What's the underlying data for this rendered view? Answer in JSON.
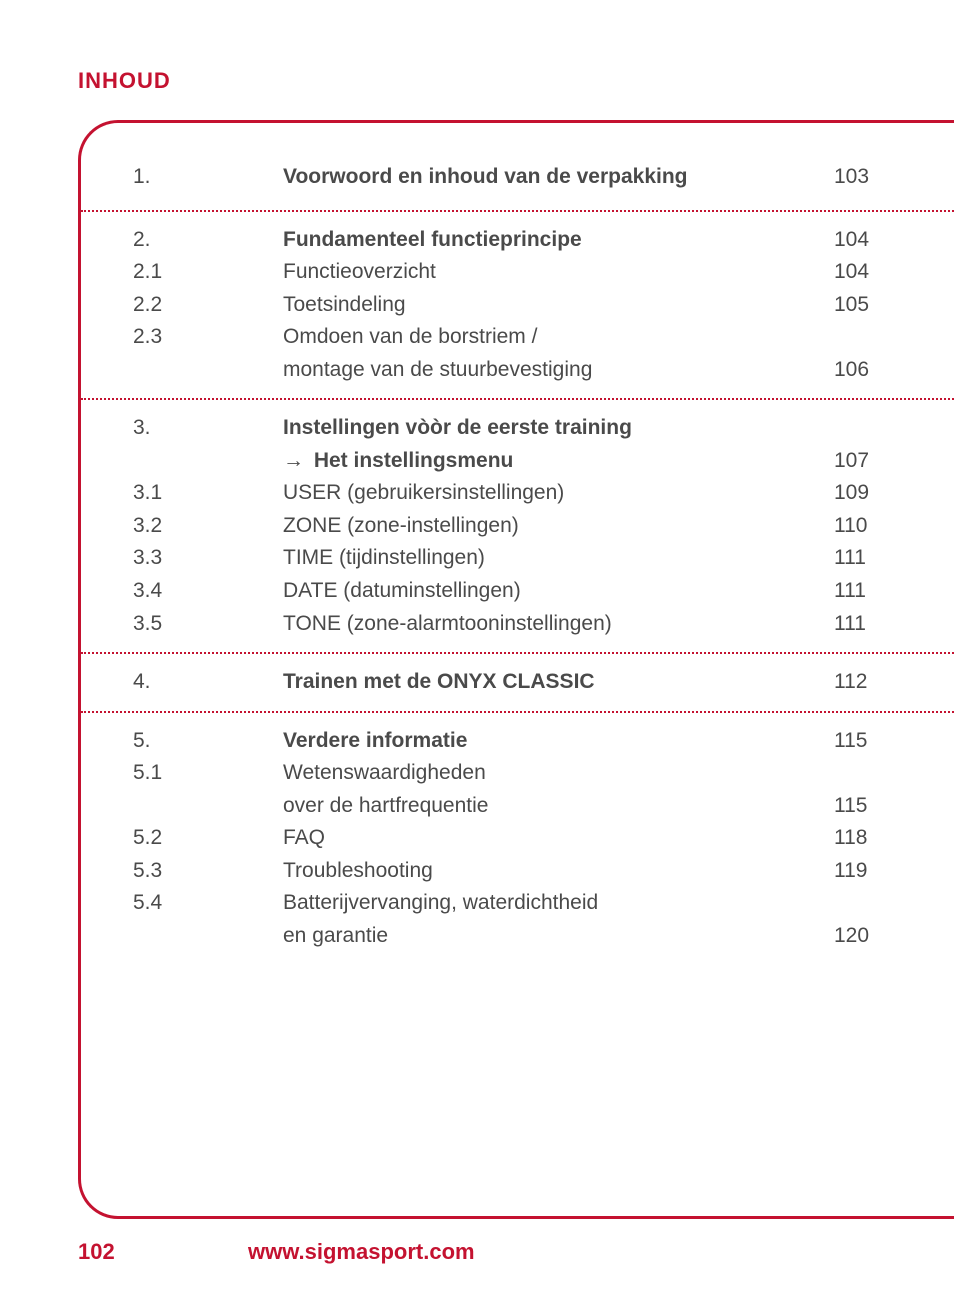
{
  "colors": {
    "accent": "#c41230",
    "text": "#4a4a4a",
    "background": "#ffffff"
  },
  "header": {
    "title": "INHOUD"
  },
  "toc": {
    "sections": [
      {
        "rows": [
          {
            "num": "1.",
            "title": "Voorwoord en inhoud van de verpakking",
            "bold": true,
            "page": "103"
          }
        ]
      },
      {
        "rows": [
          {
            "num": "2.",
            "title": "Fundamenteel functieprincipe",
            "bold": true,
            "page": "104"
          },
          {
            "num": "2.1",
            "title": "Functieoverzicht",
            "bold": false,
            "page": "104"
          },
          {
            "num": "2.2",
            "title": "Toetsindeling",
            "bold": false,
            "page": "105"
          },
          {
            "num": "2.3",
            "title": "Omdoen van de borstriem /",
            "title2": "montage van de stuurbevestiging",
            "bold": false,
            "page": "106",
            "pageOnLine2": true
          }
        ]
      },
      {
        "rows": [
          {
            "num": "3.",
            "title": "Instellingen vòòr de eerste training",
            "bold": true,
            "page": "",
            "subtitle": "Het instellingsmenu",
            "subtitleBold": true,
            "subtitleArrow": true,
            "subPage": "107"
          },
          {
            "num": "3.1",
            "title": "USER (gebruikersinstellingen)",
            "bold": false,
            "page": "109"
          },
          {
            "num": "3.2",
            "title": "ZONE (zone-instellingen)",
            "bold": false,
            "page": "110"
          },
          {
            "num": "3.3",
            "title": "TIME (tijdinstellingen)",
            "bold": false,
            "page": "111"
          },
          {
            "num": "3.4",
            "title": "DATE (datuminstellingen)",
            "bold": false,
            "page": "111"
          },
          {
            "num": "3.5",
            "title": "TONE (zone-alarmtooninstellingen)",
            "bold": false,
            "page": "111"
          }
        ]
      },
      {
        "rows": [
          {
            "num": "4.",
            "title": "Trainen met de ONYX CLASSIC",
            "bold": true,
            "page": "112"
          }
        ]
      },
      {
        "rows": [
          {
            "num": "5.",
            "title": "Verdere informatie",
            "bold": true,
            "page": "115"
          },
          {
            "num": "5.1",
            "title": "Wetenswaardigheden",
            "title2": "over de hartfrequentie",
            "bold": false,
            "page": "115",
            "pageOnLine2": true
          },
          {
            "num": "5.2",
            "title": "FAQ",
            "bold": false,
            "page": "118"
          },
          {
            "num": "5.3",
            "title": "Troubleshooting",
            "bold": false,
            "page": "119"
          },
          {
            "num": "5.4",
            "title": "Batterijvervanging, waterdichtheid",
            "title2": "en garantie",
            "bold": false,
            "page": "120",
            "pageOnLine2": true
          }
        ]
      }
    ]
  },
  "footer": {
    "page": "102",
    "url": "www.sigmasport.com"
  }
}
